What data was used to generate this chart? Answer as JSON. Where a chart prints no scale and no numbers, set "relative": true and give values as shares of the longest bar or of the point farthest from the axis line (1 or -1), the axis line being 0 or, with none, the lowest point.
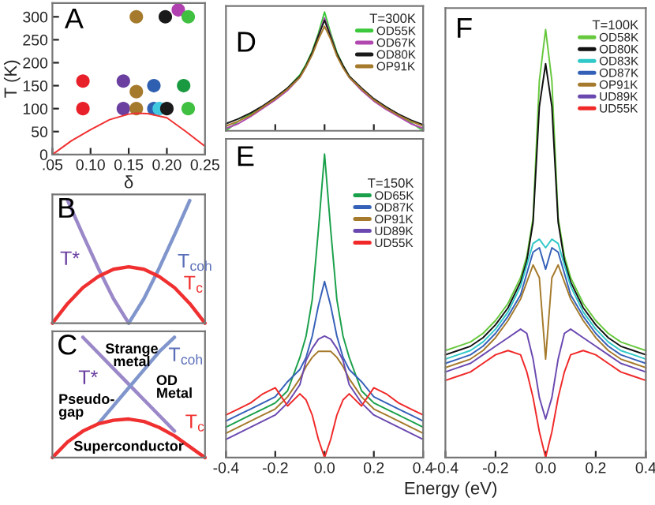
{
  "chart_data": [
    {
      "type": "scatter",
      "annotations": [
        "A"
      ],
      "xlabel": "δ",
      "ylabel": "T (K)",
      "grid": false,
      "marker": "circle",
      "xlim": [
        0.05,
        0.25
      ],
      "xticks": [
        {
          "value": 0.05,
          "label": ".05"
        },
        {
          "value": 0.1,
          "label": "0.10"
        },
        {
          "value": 0.15,
          "label": "0.15"
        },
        {
          "value": 0.2,
          "label": "0.20"
        },
        {
          "value": 0.25,
          "label": "0.25"
        }
      ],
      "ylim": [
        0,
        330
      ],
      "yticks": [
        0,
        50,
        100,
        150,
        200,
        250,
        300
      ],
      "series": [
        {
          "color": "#e8202a",
          "x": [
            0.09,
            0.09
          ],
          "values": [
            160,
            100
          ]
        },
        {
          "color": "#6a3fa0",
          "x": [
            0.143,
            0.143
          ],
          "values": [
            160,
            100
          ]
        },
        {
          "color": "#a57a2c",
          "x": [
            0.16,
            0.16,
            0.16
          ],
          "values": [
            300,
            137,
            100
          ]
        },
        {
          "color": "#2f5fb0",
          "x": [
            0.183,
            0.183
          ],
          "values": [
            150,
            100
          ]
        },
        {
          "color": "#40c8e0",
          "x": [
            0.19
          ],
          "values": [
            100
          ]
        },
        {
          "color": "#1a1a1a",
          "x": [
            0.198,
            0.2
          ],
          "values": [
            300,
            100
          ]
        },
        {
          "color": "#b040b0",
          "x": [
            0.215
          ],
          "values": [
            315
          ]
        },
        {
          "color": "#1a9a40",
          "x": [
            0.222
          ],
          "values": [
            150
          ]
        },
        {
          "color": "#40c040",
          "x": [
            0.228,
            0.228
          ],
          "values": [
            300,
            100
          ]
        },
        {
          "type": "line",
          "marker": "none",
          "color": "#f03030",
          "x": [
            0.05,
            0.075,
            0.1,
            0.125,
            0.15,
            0.16,
            0.175,
            0.2,
            0.225,
            0.25
          ],
          "values": [
            0,
            30,
            54,
            76,
            88,
            90,
            89,
            80,
            50,
            18
          ]
        }
      ]
    },
    {
      "type": "line",
      "relative": true,
      "tick_labels": false,
      "annotations": [
        "B",
        "T*",
        "T$_{coh}$",
        "T$_{c}$"
      ],
      "categories": [
        null,
        null,
        null,
        null,
        null,
        null,
        null,
        null,
        null,
        null,
        null
      ],
      "series": [
        {
          "color": "#9a88c8",
          "values": [
            null,
            1,
            0.72,
            0.45,
            0.2,
            0,
            null,
            null,
            null,
            null,
            null
          ]
        },
        {
          "color": "#7f95cc",
          "values": [
            null,
            null,
            null,
            null,
            null,
            0,
            0.2,
            0.45,
            0.72,
            1,
            null
          ]
        },
        {
          "color": "#f03030",
          "values": [
            0,
            0.16,
            0.29,
            0.38,
            0.44,
            0.46,
            0.44,
            0.38,
            0.29,
            0.16,
            0
          ]
        }
      ]
    },
    {
      "type": "line",
      "relative": true,
      "tick_labels": false,
      "annotations": [
        "C",
        "T*",
        "T$_{coh}$",
        "T$_{c}$",
        "Strange\nmetal",
        "Pseudo-\ngap",
        "OD\nMetal",
        "Superconductor"
      ],
      "categories": [
        null,
        null,
        null,
        null,
        null,
        null,
        null,
        null,
        null,
        null,
        null
      ],
      "series": [
        {
          "color": "#9a88c8",
          "values": [
            null,
            null,
            1,
            0.87,
            0.74,
            0.61,
            0.48,
            0.35,
            0.22,
            null,
            null
          ]
        },
        {
          "color": "#7f95cc",
          "values": [
            null,
            null,
            null,
            0.28,
            0.43,
            0.58,
            0.73,
            0.88,
            1.0,
            null,
            null
          ]
        },
        {
          "color": "#f03030",
          "values": [
            0,
            0.13,
            0.22,
            0.28,
            0.31,
            0.32,
            0.3,
            0.25,
            0.18,
            0.09,
            0
          ]
        }
      ]
    },
    {
      "type": "line",
      "relative": true,
      "tick_labels": false,
      "legend": "top right",
      "legend_title": "T=300K",
      "annotations": [
        "D"
      ],
      "xlim": [
        -0.4,
        0.4
      ],
      "xticks": [
        {
          "value": -0.4,
          "label": null
        },
        {
          "value": -0.2,
          "label": null
        },
        {
          "value": 0,
          "label": null
        },
        {
          "value": 0.2,
          "label": null
        },
        {
          "value": 0.4,
          "label": null
        }
      ],
      "x": [
        -0.4,
        -0.35,
        -0.3,
        -0.25,
        -0.2,
        -0.15,
        -0.1,
        -0.075,
        -0.05,
        -0.025,
        0,
        0.025,
        0.05,
        0.075,
        0.1,
        0.15,
        0.2,
        0.25,
        0.3,
        0.35,
        0.4
      ],
      "series": [
        {
          "name": "OD55K",
          "color": "#3cc83c",
          "values": [
            0.0,
            0.08,
            0.14,
            0.2,
            0.27,
            0.36,
            0.47,
            0.56,
            0.67,
            0.82,
            1.0,
            0.82,
            0.66,
            0.55,
            0.46,
            0.35,
            0.26,
            0.2,
            0.13,
            0.07,
            0.0
          ]
        },
        {
          "name": "OD67K",
          "color": "#b048b0",
          "values": [
            0.02,
            0.06,
            0.12,
            0.19,
            0.26,
            0.34,
            0.45,
            0.54,
            0.65,
            0.8,
            0.95,
            0.8,
            0.64,
            0.54,
            0.45,
            0.34,
            0.25,
            0.18,
            0.12,
            0.06,
            0.02
          ]
        },
        {
          "name": "OD80K",
          "color": "#1a1a1a",
          "values": [
            0.06,
            0.1,
            0.15,
            0.21,
            0.28,
            0.36,
            0.46,
            0.55,
            0.66,
            0.8,
            0.93,
            0.79,
            0.65,
            0.55,
            0.46,
            0.36,
            0.27,
            0.2,
            0.14,
            0.09,
            0.05
          ]
        },
        {
          "name": "OP91K",
          "color": "#a57a2c",
          "values": [
            0.04,
            0.08,
            0.13,
            0.2,
            0.27,
            0.35,
            0.45,
            0.54,
            0.64,
            0.77,
            0.88,
            0.77,
            0.63,
            0.53,
            0.45,
            0.35,
            0.26,
            0.19,
            0.13,
            0.08,
            0.04
          ]
        }
      ]
    },
    {
      "type": "line",
      "relative": true,
      "tick_labels": "x",
      "legend": "top right",
      "legend_title": "T=150K",
      "annotations": [
        "E"
      ],
      "xlabel": "Energy (eV)",
      "xlim": [
        -0.4,
        0.4
      ],
      "xticks": [
        {
          "value": -0.4,
          "label": "-0.4"
        },
        {
          "value": -0.2,
          "label": "-0.2"
        },
        {
          "value": 0,
          "label": "0.0"
        },
        {
          "value": 0.2,
          "label": "0.2"
        },
        {
          "value": 0.4,
          "label": "0.4"
        }
      ],
      "x": [
        -0.4,
        -0.35,
        -0.3,
        -0.25,
        -0.2,
        -0.15,
        -0.1,
        -0.075,
        -0.05,
        -0.025,
        0,
        0.025,
        0.05,
        0.075,
        0.1,
        0.15,
        0.2,
        0.25,
        0.3,
        0.35,
        0.4
      ],
      "series": [
        {
          "name": "OD65K",
          "color": "#1aa04a",
          "values": [
            0.1,
            0.12,
            0.14,
            0.16,
            0.18,
            0.22,
            0.33,
            0.4,
            0.52,
            0.75,
            1.0,
            0.75,
            0.52,
            0.4,
            0.33,
            0.22,
            0.18,
            0.16,
            0.14,
            0.12,
            0.1
          ]
        },
        {
          "name": "OD87K",
          "color": "#3560b8",
          "values": [
            0.12,
            0.14,
            0.16,
            0.18,
            0.2,
            0.25,
            0.29,
            0.33,
            0.4,
            0.5,
            0.58,
            0.5,
            0.4,
            0.33,
            0.29,
            0.25,
            0.2,
            0.18,
            0.16,
            0.14,
            0.12
          ]
        },
        {
          "name": "OP91K",
          "color": "#a57a2c",
          "values": [
            0.08,
            0.1,
            0.12,
            0.14,
            0.16,
            0.2,
            0.26,
            0.3,
            0.33,
            0.35,
            0.35,
            0.35,
            0.33,
            0.3,
            0.26,
            0.2,
            0.16,
            0.14,
            0.12,
            0.1,
            0.08
          ]
        },
        {
          "name": "UD89K",
          "color": "#6a48b0",
          "values": [
            0.06,
            0.08,
            0.1,
            0.12,
            0.14,
            0.18,
            0.24,
            0.32,
            0.36,
            0.39,
            0.4,
            0.39,
            0.36,
            0.32,
            0.24,
            0.18,
            0.14,
            0.12,
            0.1,
            0.08,
            0.06
          ]
        },
        {
          "name": "UD55K",
          "color": "#f02828",
          "values": [
            0.14,
            0.16,
            0.18,
            0.21,
            0.23,
            0.17,
            0.21,
            0.19,
            0.14,
            0.06,
            0.0,
            0.06,
            0.14,
            0.19,
            0.21,
            0.17,
            0.23,
            0.21,
            0.18,
            0.16,
            0.14
          ]
        }
      ]
    },
    {
      "type": "line",
      "relative": true,
      "tick_labels": "x",
      "legend": "top right",
      "legend_title": "T=100K",
      "annotations": [
        "F"
      ],
      "xlim": [
        -0.4,
        0.4
      ],
      "xticks": [
        {
          "value": -0.4,
          "label": "-0.4"
        },
        {
          "value": -0.2,
          "label": "-0.2"
        },
        {
          "value": 0,
          "label": "0.0"
        },
        {
          "value": 0.2,
          "label": "0.2"
        },
        {
          "value": 0.4,
          "label": "0.4"
        }
      ],
      "x": [
        -0.4,
        -0.35,
        -0.3,
        -0.25,
        -0.2,
        -0.15,
        -0.1,
        -0.075,
        -0.05,
        -0.025,
        0,
        0.025,
        0.05,
        0.075,
        0.1,
        0.15,
        0.2,
        0.25,
        0.3,
        0.35,
        0.4
      ],
      "series": [
        {
          "name": "OD58K",
          "color": "#66c83c",
          "values": [
            0.25,
            0.26,
            0.27,
            0.29,
            0.32,
            0.36,
            0.42,
            0.47,
            0.56,
            0.88,
            1.0,
            0.88,
            0.56,
            0.47,
            0.42,
            0.36,
            0.32,
            0.29,
            0.27,
            0.26,
            0.25
          ]
        },
        {
          "name": "OD80K",
          "color": "#111111",
          "values": [
            0.24,
            0.25,
            0.26,
            0.28,
            0.31,
            0.35,
            0.41,
            0.46,
            0.55,
            0.82,
            0.92,
            0.82,
            0.55,
            0.46,
            0.41,
            0.35,
            0.31,
            0.28,
            0.26,
            0.25,
            0.24
          ]
        },
        {
          "name": "OD83K",
          "color": "#30c8c8",
          "values": [
            0.23,
            0.24,
            0.25,
            0.27,
            0.3,
            0.34,
            0.4,
            0.45,
            0.5,
            0.51,
            0.49,
            0.51,
            0.5,
            0.45,
            0.4,
            0.34,
            0.3,
            0.27,
            0.25,
            0.24,
            0.23
          ]
        },
        {
          "name": "OD87K",
          "color": "#3560b8",
          "values": [
            0.22,
            0.23,
            0.24,
            0.26,
            0.29,
            0.33,
            0.38,
            0.43,
            0.48,
            0.49,
            0.44,
            0.49,
            0.48,
            0.43,
            0.38,
            0.33,
            0.29,
            0.26,
            0.24,
            0.23,
            0.22
          ]
        },
        {
          "name": "OP91K",
          "color": "#a57a2c",
          "values": [
            0.21,
            0.22,
            0.23,
            0.25,
            0.28,
            0.32,
            0.37,
            0.41,
            0.45,
            0.42,
            0.23,
            0.42,
            0.45,
            0.41,
            0.37,
            0.32,
            0.28,
            0.25,
            0.23,
            0.22,
            0.21
          ]
        },
        {
          "name": "UD89K",
          "color": "#6a48b0",
          "values": [
            0.2,
            0.21,
            0.22,
            0.24,
            0.26,
            0.28,
            0.3,
            0.29,
            0.23,
            0.14,
            0.09,
            0.14,
            0.23,
            0.29,
            0.3,
            0.28,
            0.26,
            0.24,
            0.22,
            0.21,
            0.2
          ]
        },
        {
          "name": "UD55K",
          "color": "#f02828",
          "values": [
            0.18,
            0.19,
            0.2,
            0.22,
            0.24,
            0.25,
            0.24,
            0.2,
            0.14,
            0.06,
            0.0,
            0.06,
            0.14,
            0.2,
            0.24,
            0.25,
            0.24,
            0.22,
            0.2,
            0.19,
            0.18
          ]
        }
      ]
    }
  ]
}
